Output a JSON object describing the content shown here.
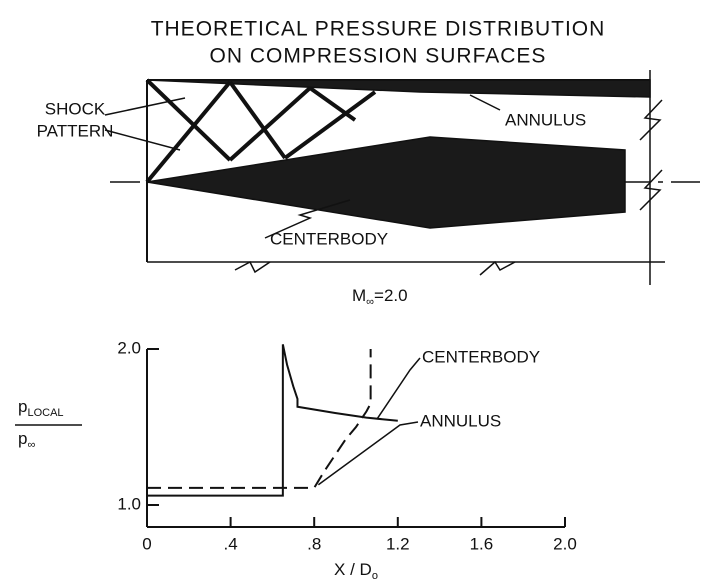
{
  "diagram": {
    "title_line1": "THEORETICAL PRESSURE DISTRIBUTION",
    "title_line2": "ON COMPRESSION SURFACES",
    "shock_label_line1": "SHOCK",
    "shock_label_line2": "PATTERN",
    "annulus_label": "ANNULUS",
    "centerbody_label": "CENTERBODY",
    "mach_label": "M",
    "mach_sub": "∞",
    "mach_value": "=2.0"
  },
  "chart_data": {
    "type": "line",
    "xlabel": "X / D",
    "xlabel_sub": "o",
    "ylabel_numerator": "p",
    "ylabel_numerator_sub": "LOCAL",
    "ylabel_denominator": "p",
    "ylabel_denominator_sub": "∞",
    "xlim": [
      0,
      2.0
    ],
    "ylim": [
      1.0,
      2.0
    ],
    "xticks": [
      0,
      {
        "value": 0.4,
        "label": ".4"
      },
      {
        "value": 0.8,
        "label": ".8"
      },
      {
        "value": 1.2,
        "label": "1.2"
      },
      {
        "value": 1.6,
        "label": "1.6"
      },
      {
        "value": 2.0,
        "label": "2.0"
      }
    ],
    "yticks": [
      {
        "value": 1.0,
        "label": "1.0"
      },
      {
        "value": 2.0,
        "label": "2.0"
      }
    ],
    "series": [
      {
        "name": "CENTERBODY",
        "color": "#111111",
        "style": "solid",
        "x": [
          0,
          0.65,
          0.65,
          0.67,
          0.7,
          0.72,
          0.72,
          0.9,
          1.05,
          1.2
        ],
        "values": [
          1.06,
          1.06,
          2.03,
          1.9,
          1.76,
          1.68,
          1.63,
          1.59,
          1.56,
          1.54
        ]
      },
      {
        "name": "ANNULUS",
        "color": "#111111",
        "style": "dashed",
        "x": [
          0,
          0.8,
          0.85,
          0.9,
          0.95,
          1.0,
          1.05,
          1.07,
          1.07
        ],
        "values": [
          1.11,
          1.11,
          1.22,
          1.32,
          1.42,
          1.5,
          1.6,
          1.65,
          2.0
        ]
      }
    ]
  }
}
